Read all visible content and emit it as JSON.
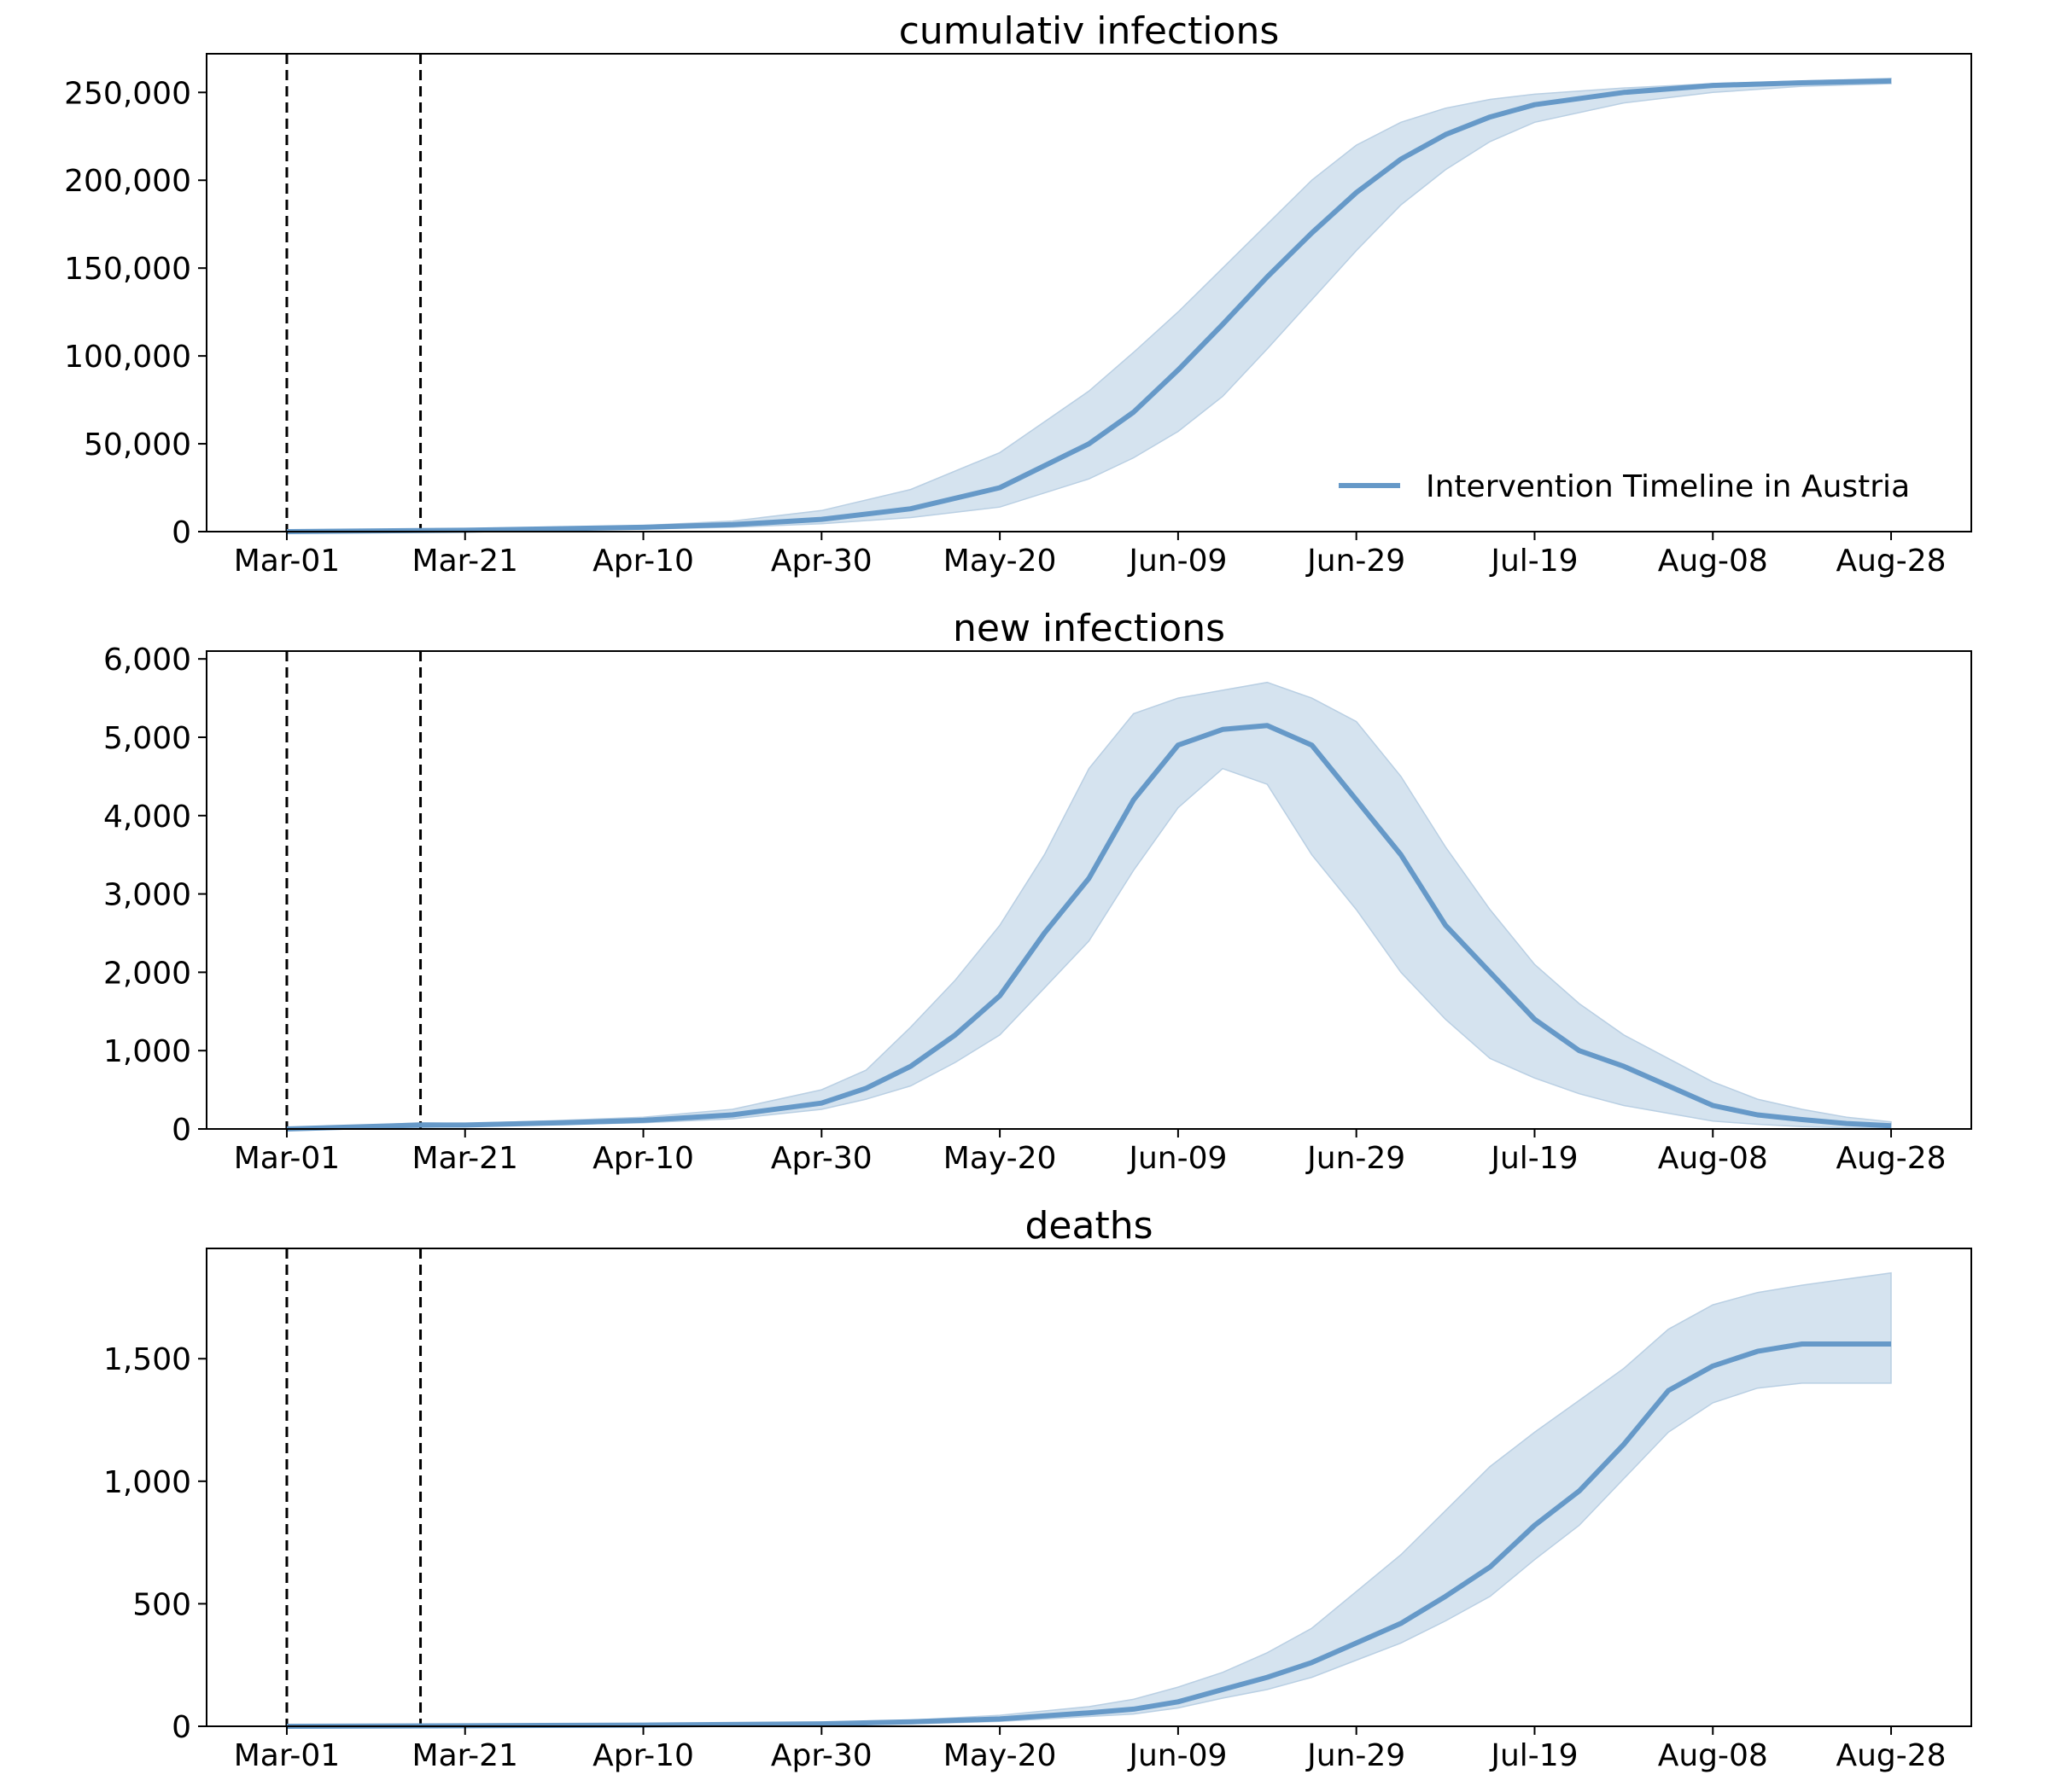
{
  "colors": {
    "line": "#6699c8",
    "band": "#d5e3ef",
    "band_edge": "#b9cfe3",
    "axis": "#000000"
  },
  "chart_data": [
    {
      "type": "line",
      "title": "cumulativ infections",
      "xlabel": "",
      "ylabel": "",
      "x_ticks": [
        "Mar-01",
        "Mar-21",
        "Apr-10",
        "Apr-30",
        "May-20",
        "Jun-09",
        "Jun-29",
        "Jul-19",
        "Aug-08",
        "Aug-28"
      ],
      "y_ticks": [
        0,
        50000,
        100000,
        150000,
        200000,
        250000
      ],
      "y_tick_labels": [
        "0",
        "50,000",
        "100,000",
        "150,000",
        "200,000",
        "250,000"
      ],
      "ylim": [
        0,
        272000
      ],
      "xlim": [
        "2020-02-21",
        "2020-09-06"
      ],
      "vlines": [
        "2020-03-01",
        "2020-03-16"
      ],
      "legend": {
        "label": "Intervention Timeline in Austria",
        "placement": "lower-right"
      },
      "series": [
        {
          "name": "Intervention Timeline in Austria",
          "x": [
            "2020-03-01",
            "2020-03-21",
            "2020-04-10",
            "2020-04-20",
            "2020-04-30",
            "2020-05-10",
            "2020-05-20",
            "2020-05-30",
            "2020-06-04",
            "2020-06-09",
            "2020-06-14",
            "2020-06-19",
            "2020-06-24",
            "2020-06-29",
            "2020-07-04",
            "2020-07-09",
            "2020-07-14",
            "2020-07-19",
            "2020-07-29",
            "2020-08-08",
            "2020-08-18",
            "2020-08-28"
          ],
          "y": [
            0,
            800,
            2500,
            4000,
            7000,
            13000,
            25000,
            50000,
            68000,
            92000,
            118000,
            145000,
            170000,
            193000,
            212000,
            226000,
            236000,
            243000,
            250000,
            254000,
            255500,
            256500
          ],
          "lower": [
            0,
            500,
            1500,
            2500,
            4500,
            8000,
            14000,
            30000,
            42000,
            57000,
            77000,
            104000,
            132000,
            160000,
            186000,
            206000,
            222000,
            233000,
            244000,
            250000,
            253500,
            255000
          ],
          "upper": [
            0,
            1200,
            3500,
            6000,
            12000,
            24000,
            45000,
            80000,
            102000,
            125000,
            150000,
            175000,
            200000,
            220000,
            233000,
            241000,
            246000,
            249000,
            252500,
            255000,
            256500,
            258000
          ]
        }
      ]
    },
    {
      "type": "line",
      "title": "new infections",
      "xlabel": "",
      "ylabel": "",
      "x_ticks": [
        "Mar-01",
        "Mar-21",
        "Apr-10",
        "Apr-30",
        "May-20",
        "Jun-09",
        "Jun-29",
        "Jul-19",
        "Aug-08",
        "Aug-28"
      ],
      "y_ticks": [
        0,
        1000,
        2000,
        3000,
        4000,
        5000,
        6000
      ],
      "y_tick_labels": [
        "0",
        "1,000",
        "2,000",
        "3,000",
        "4,000",
        "5,000",
        "6,000"
      ],
      "ylim": [
        0,
        6100
      ],
      "xlim": [
        "2020-02-21",
        "2020-09-06"
      ],
      "vlines": [
        "2020-03-01",
        "2020-03-16"
      ],
      "series": [
        {
          "x": [
            "2020-03-01",
            "2020-03-16",
            "2020-03-21",
            "2020-04-01",
            "2020-04-10",
            "2020-04-20",
            "2020-04-30",
            "2020-05-05",
            "2020-05-10",
            "2020-05-15",
            "2020-05-20",
            "2020-05-25",
            "2020-05-30",
            "2020-06-04",
            "2020-06-09",
            "2020-06-14",
            "2020-06-19",
            "2020-06-24",
            "2020-06-29",
            "2020-07-04",
            "2020-07-09",
            "2020-07-14",
            "2020-07-19",
            "2020-07-24",
            "2020-07-29",
            "2020-08-03",
            "2020-08-08",
            "2020-08-13",
            "2020-08-18",
            "2020-08-23",
            "2020-08-28"
          ],
          "y": [
            0,
            50,
            50,
            80,
            110,
            180,
            330,
            520,
            800,
            1200,
            1700,
            2500,
            3200,
            4200,
            4900,
            5100,
            5150,
            4900,
            4200,
            3500,
            2600,
            2000,
            1400,
            1000,
            800,
            550,
            300,
            180,
            120,
            70,
            40
          ],
          "lower": [
            0,
            20,
            30,
            60,
            80,
            130,
            250,
            380,
            550,
            850,
            1200,
            1800,
            2400,
            3300,
            4100,
            4600,
            4400,
            3500,
            2800,
            2000,
            1400,
            900,
            650,
            450,
            300,
            200,
            100,
            60,
            30,
            15,
            10
          ],
          "upper": [
            0,
            80,
            70,
            110,
            150,
            250,
            500,
            750,
            1300,
            1900,
            2600,
            3500,
            4600,
            5300,
            5500,
            5600,
            5700,
            5500,
            5200,
            4500,
            3600,
            2800,
            2100,
            1600,
            1200,
            900,
            600,
            380,
            250,
            150,
            90
          ]
        }
      ]
    },
    {
      "type": "line",
      "title": "deaths",
      "xlabel": "",
      "ylabel": "",
      "x_ticks": [
        "Mar-01",
        "Mar-21",
        "Apr-10",
        "Apr-30",
        "May-20",
        "Jun-09",
        "Jun-29",
        "Jul-19",
        "Aug-08",
        "Aug-28"
      ],
      "y_ticks": [
        0,
        500,
        1000,
        1500
      ],
      "y_tick_labels": [
        "0",
        "500",
        "1,000",
        "1,500"
      ],
      "ylim": [
        0,
        1950
      ],
      "xlim": [
        "2020-02-21",
        "2020-09-06"
      ],
      "vlines": [
        "2020-03-01",
        "2020-03-16"
      ],
      "series": [
        {
          "x": [
            "2020-03-01",
            "2020-03-21",
            "2020-04-10",
            "2020-04-30",
            "2020-05-10",
            "2020-05-20",
            "2020-05-30",
            "2020-06-04",
            "2020-06-09",
            "2020-06-14",
            "2020-06-19",
            "2020-06-24",
            "2020-06-29",
            "2020-07-04",
            "2020-07-09",
            "2020-07-14",
            "2020-07-19",
            "2020-07-24",
            "2020-07-29",
            "2020-08-03",
            "2020-08-08",
            "2020-08-13",
            "2020-08-18",
            "2020-08-28"
          ],
          "y": [
            0,
            2,
            5,
            10,
            18,
            30,
            55,
            70,
            100,
            150,
            200,
            260,
            340,
            420,
            530,
            650,
            820,
            960,
            1150,
            1370,
            1470,
            1530,
            1560,
            1560
          ],
          "lower": [
            0,
            0,
            2,
            5,
            10,
            20,
            40,
            50,
            75,
            115,
            150,
            200,
            270,
            340,
            430,
            530,
            680,
            820,
            1010,
            1200,
            1320,
            1380,
            1400,
            1400
          ],
          "upper": [
            0,
            4,
            8,
            15,
            25,
            45,
            80,
            110,
            160,
            220,
            300,
            400,
            550,
            700,
            880,
            1060,
            1200,
            1330,
            1460,
            1620,
            1720,
            1770,
            1800,
            1850
          ]
        }
      ]
    }
  ]
}
